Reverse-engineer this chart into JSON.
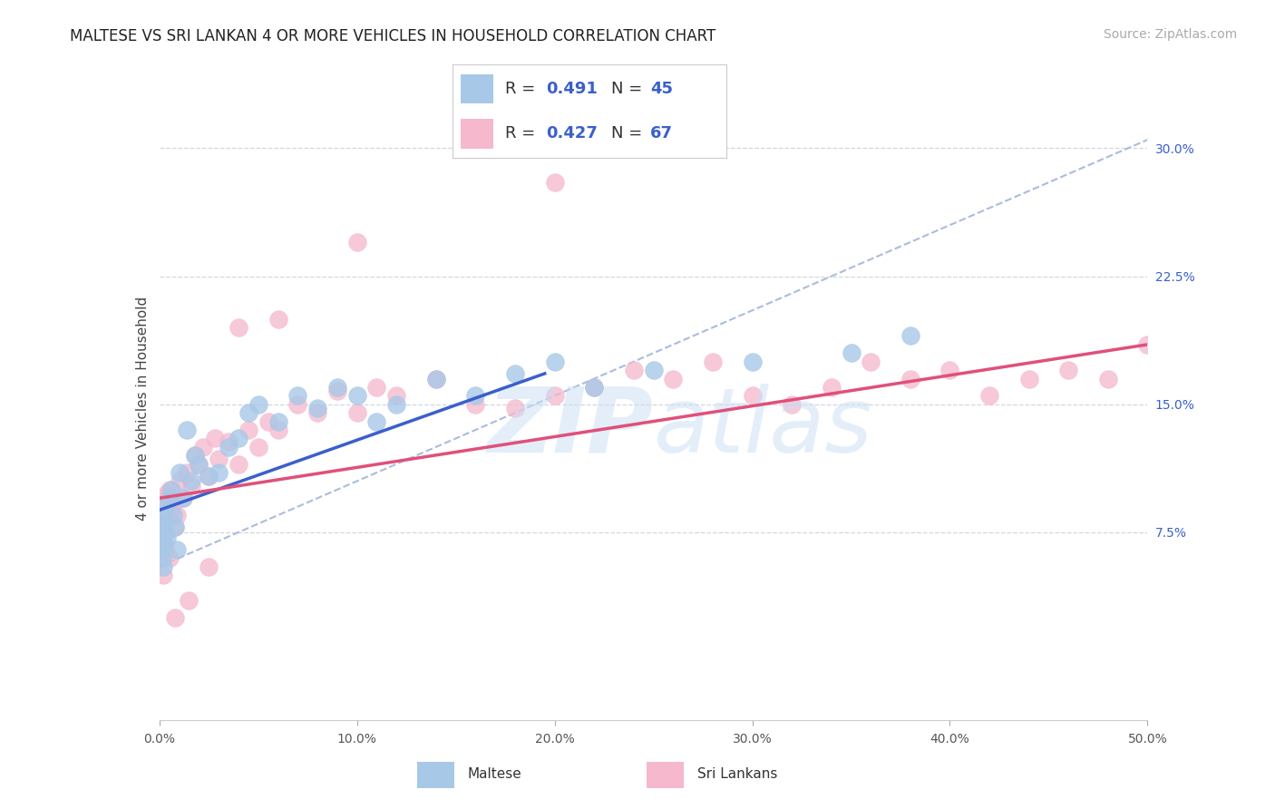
{
  "title": "MALTESE VS SRI LANKAN 4 OR MORE VEHICLES IN HOUSEHOLD CORRELATION CHART",
  "source": "Source: ZipAtlas.com",
  "ylabel": "4 or more Vehicles in Household",
  "xlim": [
    0.0,
    50.0
  ],
  "ylim": [
    -3.5,
    33.0
  ],
  "maltese_R": 0.491,
  "maltese_N": 45,
  "srilankan_R": 0.427,
  "srilankan_N": 67,
  "maltese_color": "#a8c8e8",
  "srilankan_color": "#f5b8cc",
  "maltese_line_color": "#3a5fcd",
  "srilankan_line_color": "#e0507a",
  "ref_line_color": "#aabcdd",
  "background_color": "#ffffff",
  "grid_color": "#d5d5e0",
  "y_ticks": [
    7.5,
    15.0,
    22.5,
    30.0
  ],
  "x_ticks": [
    0,
    10,
    20,
    30,
    40,
    50
  ],
  "legend_R_N_color": "#3a5fcd",
  "legend_border_color": "#cccccc",
  "right_tick_color": "#3a5fcd",
  "watermark_color": "#c8dff5",
  "title_fontsize": 12,
  "source_fontsize": 10,
  "tick_fontsize": 10,
  "ylabel_fontsize": 11,
  "legend_fontsize": 13,
  "maltese_x": [
    0.05,
    0.08,
    0.1,
    0.12,
    0.15,
    0.18,
    0.2,
    0.22,
    0.25,
    0.3,
    0.35,
    0.4,
    0.5,
    0.6,
    0.7,
    0.8,
    0.9,
    1.0,
    1.2,
    1.4,
    1.6,
    1.8,
    2.0,
    2.5,
    3.0,
    3.5,
    4.0,
    4.5,
    5.0,
    6.0,
    7.0,
    8.0,
    9.0,
    10.0,
    11.0,
    12.0,
    14.0,
    16.0,
    18.0,
    20.0,
    22.0,
    25.0,
    30.0,
    35.0,
    38.0
  ],
  "maltese_y": [
    7.5,
    6.5,
    8.0,
    7.0,
    6.0,
    5.5,
    8.5,
    7.5,
    6.8,
    9.0,
    8.0,
    7.2,
    9.5,
    10.0,
    8.5,
    7.8,
    6.5,
    11.0,
    9.5,
    13.5,
    10.5,
    12.0,
    11.5,
    10.8,
    11.0,
    12.5,
    13.0,
    14.5,
    15.0,
    14.0,
    15.5,
    14.8,
    16.0,
    15.5,
    14.0,
    15.0,
    16.5,
    15.5,
    16.8,
    17.5,
    16.0,
    17.0,
    17.5,
    18.0,
    19.0
  ],
  "srilankan_x": [
    0.05,
    0.08,
    0.1,
    0.12,
    0.15,
    0.18,
    0.2,
    0.25,
    0.3,
    0.35,
    0.4,
    0.5,
    0.6,
    0.7,
    0.8,
    0.9,
    1.0,
    1.2,
    1.4,
    1.6,
    1.8,
    2.0,
    2.2,
    2.5,
    2.8,
    3.0,
    3.5,
    4.0,
    4.5,
    5.0,
    5.5,
    6.0,
    7.0,
    8.0,
    9.0,
    10.0,
    11.0,
    12.0,
    14.0,
    16.0,
    18.0,
    20.0,
    22.0,
    24.0,
    26.0,
    28.0,
    30.0,
    32.0,
    34.0,
    36.0,
    38.0,
    40.0,
    42.0,
    44.0,
    46.0,
    48.0,
    50.0,
    20.0,
    10.0,
    6.0,
    4.0,
    2.5,
    1.5,
    0.8,
    0.5,
    0.3,
    0.2
  ],
  "srilankan_y": [
    7.0,
    8.5,
    6.5,
    9.0,
    7.5,
    8.0,
    6.8,
    9.5,
    8.2,
    7.5,
    9.8,
    10.0,
    8.8,
    9.2,
    7.8,
    8.5,
    10.5,
    9.5,
    11.0,
    10.2,
    12.0,
    11.5,
    12.5,
    10.8,
    13.0,
    11.8,
    12.8,
    11.5,
    13.5,
    12.5,
    14.0,
    13.5,
    15.0,
    14.5,
    15.8,
    14.5,
    16.0,
    15.5,
    16.5,
    15.0,
    14.8,
    15.5,
    16.0,
    17.0,
    16.5,
    17.5,
    15.5,
    15.0,
    16.0,
    17.5,
    16.5,
    17.0,
    15.5,
    16.5,
    17.0,
    16.5,
    18.5,
    28.0,
    24.5,
    20.0,
    19.5,
    5.5,
    3.5,
    2.5,
    6.0,
    6.5,
    5.0
  ],
  "maltese_line_x0": 0.0,
  "maltese_line_x1": 19.5,
  "maltese_line_y0": 8.8,
  "maltese_line_y1": 16.8,
  "srilankan_line_x0": 0.0,
  "srilankan_line_x1": 50.0,
  "srilankan_line_y0": 9.5,
  "srilankan_line_y1": 18.5,
  "ref_line_x0": 0.0,
  "ref_line_x1": 50.0,
  "ref_line_y0": 5.5,
  "ref_line_y1": 30.5
}
